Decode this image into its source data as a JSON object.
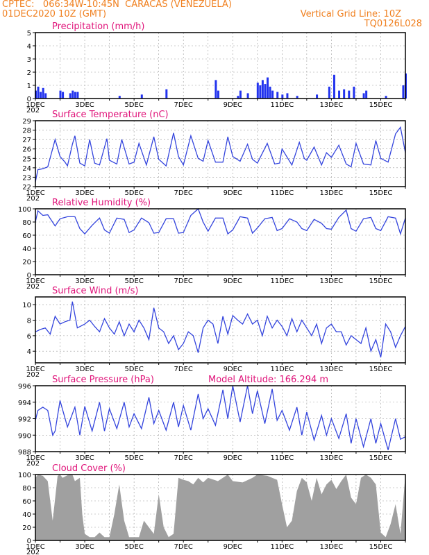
{
  "header": {
    "line1_left": "CPTEC:   066:34W-10:45N  CARACAS (VENEZUELA)",
    "line2_left": "01DEC2020 10Z (GMT)",
    "line2_right": "Vertical Grid Line: 10Z",
    "line3_right": "TQ0126L028"
  },
  "x_axis": {
    "tick_labels": [
      "1DEC",
      "3DEC",
      "5DEC",
      "7DEC",
      "9DEC",
      "11DEC",
      "13DEC",
      "15DEC"
    ],
    "start_day": 1,
    "end_day": 16,
    "year_fragment": "202"
  },
  "colors": {
    "line": "#3344dd",
    "bar": "#2233ee",
    "cloud": "#a0a0a0",
    "title": "#e0147a",
    "header": "#f08020"
  },
  "chart_data": [
    {
      "id": "precip",
      "type": "bar",
      "title": "Precipitation (mm/h)",
      "ylim": [
        0,
        5
      ],
      "yticks": [
        0,
        1,
        2,
        3,
        4,
        5
      ],
      "x": [
        1.0,
        1.1,
        1.2,
        1.3,
        1.4,
        2.0,
        2.1,
        2.4,
        2.5,
        2.6,
        2.7,
        4.4,
        5.3,
        6.3,
        8.3,
        8.4,
        9.2,
        9.3,
        9.6,
        10.0,
        10.1,
        10.2,
        10.3,
        10.4,
        10.5,
        10.6,
        10.8,
        11.0,
        11.2,
        11.6,
        12.4,
        12.9,
        13.1,
        13.3,
        13.5,
        13.7,
        13.9,
        14.3,
        14.4,
        15.2,
        15.9,
        16.0
      ],
      "values": [
        0.6,
        0.9,
        0.5,
        0.8,
        0.4,
        0.6,
        0.5,
        0.4,
        0.6,
        0.5,
        0.5,
        0.2,
        0.3,
        0.7,
        1.4,
        0.6,
        0.2,
        0.6,
        0.4,
        1.2,
        1.0,
        1.4,
        1.1,
        1.6,
        0.9,
        0.6,
        0.5,
        0.3,
        0.4,
        0.2,
        0.3,
        0.9,
        1.8,
        0.6,
        0.7,
        0.6,
        0.9,
        0.4,
        0.6,
        0.2,
        1.0,
        1.9
      ]
    },
    {
      "id": "temp",
      "type": "line",
      "title": "Surface Temperature (nC)",
      "ylim": [
        22,
        29
      ],
      "yticks": [
        22,
        23,
        24,
        25,
        26,
        27,
        28,
        29
      ],
      "x": [
        1.0,
        1.1,
        1.3,
        1.5,
        1.8,
        2.0,
        2.2,
        2.3,
        2.5,
        2.6,
        2.8,
        3.0,
        3.2,
        3.4,
        3.6,
        3.9,
        4.0,
        4.3,
        4.5,
        4.8,
        5.0,
        5.2,
        5.5,
        5.8,
        6.0,
        6.3,
        6.6,
        6.8,
        7.0,
        7.3,
        7.6,
        7.8,
        8.0,
        8.3,
        8.6,
        8.8,
        9.0,
        9.3,
        9.6,
        9.8,
        10.0,
        10.4,
        10.7,
        10.9,
        11.0,
        11.4,
        11.7,
        11.9,
        12.0,
        12.3,
        12.6,
        12.8,
        13.0,
        13.3,
        13.6,
        13.8,
        14.0,
        14.3,
        14.6,
        14.8,
        15.0,
        15.3,
        15.6,
        15.8,
        16.0
      ],
      "values": [
        22.5,
        23.8,
        23.9,
        24.1,
        27.0,
        25.2,
        24.6,
        24.2,
        26.5,
        27.4,
        24.5,
        24.2,
        27.0,
        24.5,
        24.3,
        27.1,
        24.8,
        24.4,
        27.0,
        24.4,
        24.6,
        26.6,
        24.3,
        27.3,
        24.9,
        24.2,
        27.7,
        25.2,
        24.3,
        27.4,
        25.0,
        24.7,
        26.9,
        24.6,
        24.6,
        27.3,
        25.2,
        24.7,
        26.5,
        24.9,
        24.5,
        26.6,
        24.4,
        24.5,
        26.0,
        24.3,
        26.7,
        25.0,
        24.8,
        26.2,
        24.3,
        25.6,
        25.1,
        26.4,
        24.4,
        24.1,
        26.6,
        24.4,
        24.3,
        26.9,
        25.0,
        24.6,
        27.6,
        28.3,
        25.6
      ]
    },
    {
      "id": "rh",
      "type": "line",
      "title": "Relative Humidity (%)",
      "ylim": [
        0,
        100
      ],
      "yticks": [
        0,
        20,
        40,
        60,
        80,
        100
      ],
      "x": [
        1.0,
        1.1,
        1.3,
        1.5,
        1.8,
        2.0,
        2.3,
        2.6,
        2.8,
        3.0,
        3.3,
        3.6,
        3.8,
        4.0,
        4.3,
        4.6,
        4.8,
        5.0,
        5.3,
        5.6,
        5.8,
        6.0,
        6.3,
        6.6,
        6.8,
        7.0,
        7.3,
        7.6,
        7.8,
        8.0,
        8.3,
        8.6,
        8.8,
        9.0,
        9.3,
        9.6,
        9.8,
        10.0,
        10.3,
        10.6,
        10.8,
        11.0,
        11.3,
        11.6,
        11.8,
        12.0,
        12.3,
        12.6,
        12.8,
        13.0,
        13.3,
        13.6,
        13.8,
        14.0,
        14.3,
        14.6,
        14.8,
        15.0,
        15.3,
        15.6,
        15.8,
        16.0
      ],
      "values": [
        80,
        97,
        90,
        91,
        74,
        85,
        88,
        88,
        70,
        62,
        75,
        86,
        68,
        63,
        86,
        84,
        64,
        68,
        86,
        79,
        63,
        64,
        85,
        85,
        63,
        64,
        90,
        100,
        80,
        66,
        86,
        86,
        62,
        68,
        88,
        86,
        63,
        71,
        85,
        87,
        67,
        70,
        85,
        80,
        70,
        67,
        84,
        78,
        70,
        69,
        87,
        98,
        70,
        66,
        85,
        87,
        70,
        67,
        88,
        86,
        62,
        86
      ]
    },
    {
      "id": "wind",
      "type": "line",
      "title": "Surface Wind (m/s)",
      "ylim": [
        2.5,
        11
      ],
      "yticks": [
        4,
        6,
        8,
        10
      ],
      "x": [
        1.0,
        1.2,
        1.4,
        1.6,
        1.8,
        2.0,
        2.2,
        2.4,
        2.5,
        2.7,
        3.0,
        3.2,
        3.4,
        3.6,
        3.8,
        4.0,
        4.2,
        4.4,
        4.6,
        4.8,
        5.0,
        5.2,
        5.4,
        5.6,
        5.8,
        6.0,
        6.2,
        6.4,
        6.6,
        6.8,
        7.0,
        7.2,
        7.4,
        7.6,
        7.8,
        8.0,
        8.2,
        8.4,
        8.6,
        8.8,
        9.0,
        9.2,
        9.4,
        9.6,
        9.8,
        10.0,
        10.2,
        10.4,
        10.6,
        10.8,
        11.0,
        11.2,
        11.4,
        11.6,
        11.8,
        12.0,
        12.2,
        12.4,
        12.6,
        12.8,
        13.0,
        13.2,
        13.4,
        13.6,
        13.8,
        14.0,
        14.2,
        14.4,
        14.6,
        14.8,
        15.0,
        15.2,
        15.4,
        15.6,
        15.8,
        16.0
      ],
      "values": [
        6.5,
        6.8,
        7.0,
        6.2,
        8.5,
        7.5,
        7.8,
        8.0,
        10.4,
        7.0,
        7.5,
        8.0,
        7.2,
        6.5,
        8.2,
        7.0,
        6.2,
        7.8,
        6.0,
        7.5,
        6.5,
        8.0,
        7.0,
        5.5,
        9.6,
        7.0,
        6.5,
        5.0,
        6.0,
        4.2,
        5.0,
        6.5,
        6.0,
        3.8,
        7.0,
        8.0,
        7.5,
        5.0,
        8.5,
        6.2,
        8.6,
        8.0,
        7.5,
        8.8,
        7.5,
        8.0,
        6.0,
        8.5,
        7.0,
        8.0,
        7.2,
        6.0,
        8.2,
        6.5,
        8.0,
        7.0,
        6.0,
        7.5,
        5.0,
        7.0,
        7.5,
        6.5,
        6.5,
        4.8,
        6.0,
        5.5,
        5.0,
        7.0,
        4.0,
        5.5,
        3.2,
        7.5,
        6.5,
        4.5,
        6.0,
        7.2
      ]
    },
    {
      "id": "pressure",
      "type": "line",
      "title": "Surface Pressure (hPa)",
      "subtitle": "Model Altitude: 166.294 m",
      "ylim": [
        988,
        996
      ],
      "yticks": [
        988,
        990,
        992,
        994,
        996
      ],
      "x": [
        1.0,
        1.1,
        1.3,
        1.5,
        1.7,
        1.8,
        2.0,
        2.3,
        2.6,
        2.8,
        3.0,
        3.3,
        3.6,
        3.8,
        4.0,
        4.3,
        4.6,
        4.8,
        5.0,
        5.3,
        5.6,
        5.8,
        6.0,
        6.3,
        6.6,
        6.8,
        7.0,
        7.3,
        7.6,
        7.8,
        8.0,
        8.3,
        8.6,
        8.8,
        9.0,
        9.3,
        9.6,
        9.8,
        10.0,
        10.3,
        10.6,
        10.8,
        11.0,
        11.3,
        11.6,
        11.8,
        12.0,
        12.3,
        12.6,
        12.8,
        13.0,
        13.3,
        13.6,
        13.8,
        14.0,
        14.3,
        14.6,
        14.8,
        15.0,
        15.3,
        15.6,
        15.8,
        16.0
      ],
      "values": [
        991.8,
        993.0,
        993.4,
        993.0,
        990.0,
        990.5,
        994.2,
        991.0,
        993.4,
        990.0,
        993.5,
        990.5,
        994.0,
        990.5,
        993.2,
        990.8,
        994.0,
        991.0,
        992.6,
        990.8,
        994.6,
        991.4,
        993.0,
        990.6,
        994.0,
        991.0,
        993.6,
        990.6,
        995.0,
        992.0,
        993.2,
        991.2,
        995.5,
        992.0,
        996.0,
        991.6,
        996.0,
        992.6,
        995.4,
        991.4,
        995.6,
        991.8,
        993.0,
        990.6,
        993.4,
        990.0,
        992.8,
        989.4,
        992.4,
        990.0,
        992.0,
        989.6,
        992.6,
        989.0,
        992.0,
        988.6,
        992.0,
        989.0,
        991.4,
        988.2,
        992.0,
        989.5,
        989.8
      ]
    },
    {
      "id": "cloud",
      "type": "area",
      "title": "Cloud Cover (%)",
      "ylim": [
        0,
        100
      ],
      "yticks": [
        0,
        20,
        40,
        60,
        80,
        100
      ],
      "x": [
        1.0,
        1.1,
        1.3,
        1.5,
        1.7,
        1.9,
        2.0,
        2.1,
        2.3,
        2.5,
        2.6,
        2.8,
        2.9,
        3.0,
        3.2,
        3.4,
        3.6,
        3.8,
        4.0,
        4.2,
        4.4,
        4.6,
        4.8,
        5.0,
        5.2,
        5.4,
        5.6,
        5.8,
        6.0,
        6.2,
        6.4,
        6.6,
        6.8,
        7.0,
        7.2,
        7.4,
        7.6,
        7.8,
        8.0,
        8.4,
        8.8,
        9.0,
        9.4,
        9.8,
        10.0,
        10.4,
        10.8,
        11.0,
        11.2,
        11.4,
        11.6,
        11.8,
        12.0,
        12.2,
        12.4,
        12.6,
        12.8,
        13.0,
        13.2,
        13.4,
        13.6,
        13.8,
        14.0,
        14.2,
        14.4,
        14.6,
        14.8,
        15.0,
        15.2,
        15.4,
        15.6,
        15.8,
        16.0
      ],
      "values": [
        95,
        100,
        98,
        90,
        30,
        98,
        100,
        95,
        99,
        100,
        90,
        95,
        40,
        10,
        5,
        5,
        12,
        5,
        5,
        40,
        85,
        30,
        5,
        5,
        5,
        30,
        20,
        10,
        70,
        20,
        5,
        10,
        95,
        92,
        90,
        85,
        95,
        88,
        95,
        90,
        100,
        90,
        88,
        95,
        100,
        98,
        92,
        55,
        20,
        30,
        75,
        95,
        88,
        60,
        95,
        70,
        85,
        92,
        78,
        90,
        100,
        65,
        55,
        95,
        100,
        95,
        85,
        12,
        5,
        25,
        55,
        10,
        100
      ]
    }
  ]
}
